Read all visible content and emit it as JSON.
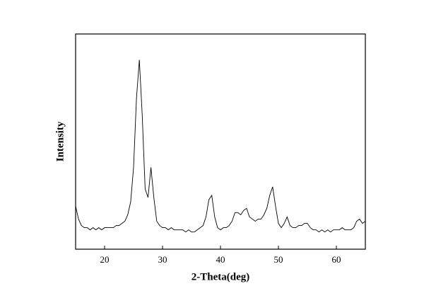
{
  "chart_data": {
    "type": "line",
    "xlabel": "2-Theta(deg)",
    "ylabel": "Intensity",
    "color": "#000000",
    "x": [
      15,
      15.5,
      16,
      16.5,
      17,
      17.5,
      18,
      18.5,
      19,
      19.5,
      20,
      20.5,
      21,
      21.5,
      22,
      22.5,
      23,
      23.5,
      24,
      24.5,
      25,
      25.5,
      26,
      26.5,
      27,
      27.5,
      28,
      28.5,
      29,
      29.5,
      30,
      30.5,
      31,
      31.5,
      32,
      32.5,
      33,
      33.5,
      34,
      34.5,
      35,
      35.5,
      36,
      36.5,
      37,
      37.5,
      38,
      38.5,
      39,
      39.5,
      40,
      40.5,
      41,
      41.5,
      42,
      42.5,
      43,
      43.5,
      44,
      44.5,
      45,
      45.5,
      46,
      46.5,
      47,
      47.5,
      48,
      48.5,
      49,
      49.5,
      50,
      50.5,
      51,
      51.5,
      52,
      52.5,
      53,
      53.5,
      54,
      54.5,
      55,
      55.5,
      56,
      56.5,
      57,
      57.5,
      58,
      58.5,
      59,
      59.5,
      60,
      60.5,
      61,
      61.5,
      62,
      62.5,
      63,
      63.5,
      64,
      64.5,
      65
    ],
    "values": [
      20,
      14,
      11,
      10,
      10,
      9,
      10,
      9,
      10,
      9,
      10,
      10,
      10,
      10,
      11,
      11,
      12,
      13,
      16,
      22,
      38,
      70,
      88,
      62,
      28,
      24,
      38,
      24,
      13,
      11,
      10,
      10,
      9,
      10,
      9,
      9,
      9,
      9,
      8,
      9,
      8,
      8,
      9,
      10,
      11,
      15,
      23,
      25,
      15,
      10,
      9,
      10,
      10,
      11,
      13,
      17,
      17,
      16,
      18,
      19,
      15,
      14,
      13,
      14,
      14,
      16,
      19,
      25,
      29,
      20,
      12,
      10,
      12,
      15,
      11,
      10,
      10,
      11,
      11,
      12,
      12,
      10,
      9,
      9,
      8,
      9,
      8,
      9,
      8,
      9,
      9,
      9,
      10,
      9,
      9,
      9,
      10,
      13,
      14,
      12,
      13
    ],
    "xlim": [
      15,
      65
    ],
    "xticks": [
      20,
      30,
      40,
      50,
      60
    ],
    "ylim": [
      0,
      100
    ]
  }
}
